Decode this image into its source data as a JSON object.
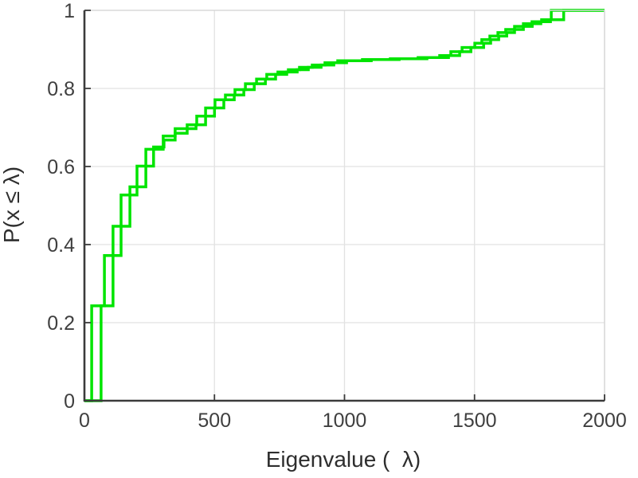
{
  "figure": {
    "background": "#ffffff"
  },
  "chart_data": {
    "type": "line",
    "subtype": "ecdf-staircase",
    "title": "",
    "xlabel": "Eigenvalue (  λ)",
    "ylabel": "P(x ≤ λ)",
    "xlim": [
      0,
      2000
    ],
    "ylim": [
      0,
      1
    ],
    "xticks": {
      "values": [
        0,
        500,
        1000,
        1500,
        2000
      ],
      "labels": [
        "0",
        "500",
        "1000",
        "1500",
        "2000"
      ]
    },
    "yticks": {
      "values": [
        0,
        0.2,
        0.4,
        0.6,
        0.8,
        1
      ],
      "labels": [
        "0",
        "0.2",
        "0.4",
        "0.6",
        "0.8",
        "1"
      ]
    },
    "grid": true,
    "legend": false,
    "line_color": "#00e400",
    "grid_color": "#e2e2e2",
    "axis_color": "#3b3b3b",
    "box_color": "#d8d8d8",
    "text_color": "#3f3f3f",
    "series": [
      {
        "name": "ecdf-step-series-1",
        "steps": [
          [
            28,
            0.243
          ],
          [
            77,
            0.372
          ],
          [
            141,
            0.527
          ],
          [
            202,
            0.601
          ],
          [
            266,
            0.65
          ],
          [
            306,
            0.668
          ],
          [
            349,
            0.685
          ],
          [
            395,
            0.707
          ],
          [
            432,
            0.729
          ],
          [
            466,
            0.75
          ],
          [
            502,
            0.771
          ],
          [
            542,
            0.783
          ],
          [
            579,
            0.797
          ],
          [
            619,
            0.812
          ],
          [
            662,
            0.824
          ],
          [
            701,
            0.836
          ],
          [
            744,
            0.842
          ],
          [
            784,
            0.848
          ],
          [
            827,
            0.854
          ],
          [
            876,
            0.86
          ],
          [
            925,
            0.866
          ],
          [
            974,
            0.871
          ],
          [
            1069,
            0.874
          ],
          [
            1176,
            0.876
          ],
          [
            1283,
            0.879
          ],
          [
            1366,
            0.884
          ],
          [
            1409,
            0.894
          ],
          [
            1452,
            0.905
          ],
          [
            1501,
            0.916
          ],
          [
            1528,
            0.925
          ],
          [
            1559,
            0.934
          ],
          [
            1590,
            0.943
          ],
          [
            1620,
            0.951
          ],
          [
            1654,
            0.959
          ],
          [
            1688,
            0.966
          ],
          [
            1721,
            0.971
          ],
          [
            1758,
            0.976
          ],
          [
            1795,
            1.0
          ]
        ]
      },
      {
        "name": "ecdf-step-series-2",
        "steps": [
          [
            64,
            0.243
          ],
          [
            110,
            0.447
          ],
          [
            175,
            0.548
          ],
          [
            236,
            0.644
          ],
          [
            303,
            0.678
          ],
          [
            349,
            0.697
          ],
          [
            429,
            0.707
          ],
          [
            466,
            0.729
          ],
          [
            500,
            0.75
          ],
          [
            536,
            0.771
          ],
          [
            576,
            0.783
          ],
          [
            613,
            0.797
          ],
          [
            653,
            0.812
          ],
          [
            696,
            0.824
          ],
          [
            735,
            0.836
          ],
          [
            778,
            0.842
          ],
          [
            818,
            0.848
          ],
          [
            861,
            0.854
          ],
          [
            910,
            0.86
          ],
          [
            959,
            0.866
          ],
          [
            1008,
            0.871
          ],
          [
            1103,
            0.874
          ],
          [
            1210,
            0.876
          ],
          [
            1317,
            0.879
          ],
          [
            1400,
            0.884
          ],
          [
            1443,
            0.894
          ],
          [
            1486,
            0.905
          ],
          [
            1535,
            0.916
          ],
          [
            1562,
            0.925
          ],
          [
            1593,
            0.934
          ],
          [
            1624,
            0.943
          ],
          [
            1654,
            0.951
          ],
          [
            1688,
            0.959
          ],
          [
            1722,
            0.966
          ],
          [
            1755,
            0.971
          ],
          [
            1792,
            0.976
          ],
          [
            1843,
            1.0
          ]
        ]
      }
    ]
  }
}
